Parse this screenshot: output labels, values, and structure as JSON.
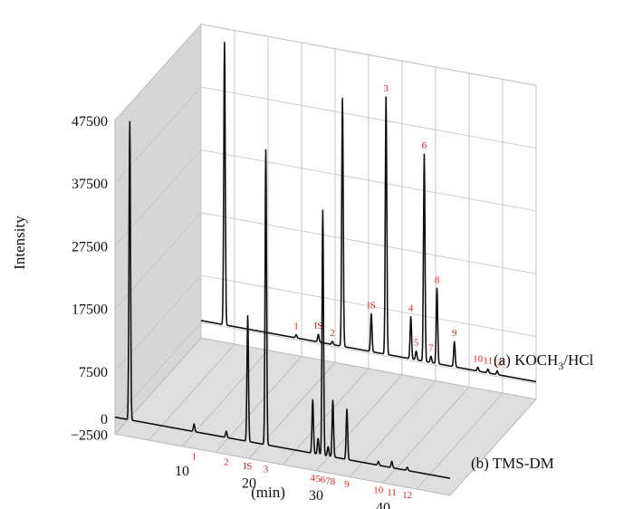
{
  "chart_data": {
    "type": "line",
    "style": "3d-waterfall",
    "ylabel": "Intensity",
    "xlabel": "(min)",
    "yticks": [
      "47500",
      "37500",
      "27500",
      "17500",
      "7500",
      "0",
      "−2500"
    ],
    "ytick_values": [
      47500,
      37500,
      27500,
      17500,
      7500,
      0,
      -2500
    ],
    "xticks": [
      "10",
      "20",
      "30",
      "40"
    ],
    "xtick_values": [
      10,
      20,
      30,
      40
    ],
    "xlim": [
      0,
      50
    ],
    "ylim": [
      -2500,
      47500
    ],
    "grid": true,
    "label_color": "#e8231f",
    "line_color": "#111111",
    "series": [
      {
        "name": "(a) KOCH",
        "name_sub": "3",
        "name_tail": "/HCl",
        "depth": 1,
        "baseline": 300,
        "peaks": [
          {
            "x": 3.5,
            "y": 45000,
            "label": ""
          },
          {
            "x": 14.2,
            "y": 500,
            "label": "1"
          },
          {
            "x": 17.5,
            "y": 1200,
            "label": "IS"
          },
          {
            "x": 19.6,
            "y": 500,
            "label": "2"
          },
          {
            "x": 21.1,
            "y": 39500,
            "label": ""
          },
          {
            "x": 25.4,
            "y": 6000,
            "label": "IS"
          },
          {
            "x": 27.6,
            "y": 41000,
            "label": "3"
          },
          {
            "x": 31.3,
            "y": 6700,
            "label": "4"
          },
          {
            "x": 32.1,
            "y": 1400,
            "label": "5"
          },
          {
            "x": 33.3,
            "y": 33000,
            "label": "6"
          },
          {
            "x": 34.3,
            "y": 1000,
            "label": "7"
          },
          {
            "x": 35.2,
            "y": 12000,
            "label": "8"
          },
          {
            "x": 37.8,
            "y": 4000,
            "label": "9"
          },
          {
            "x": 41.3,
            "y": 600,
            "label": "10"
          },
          {
            "x": 42.8,
            "y": 600,
            "label": "11"
          },
          {
            "x": 44.2,
            "y": 600,
            "label": "12"
          }
        ]
      },
      {
        "name": "(b) TMS-DM",
        "depth": 0,
        "baseline": 200,
        "peaks": [
          {
            "x": 2.2,
            "y": 47500,
            "label": ""
          },
          {
            "x": 11.8,
            "y": 1200,
            "label": "1"
          },
          {
            "x": 16.6,
            "y": 1000,
            "label": "2"
          },
          {
            "x": 19.8,
            "y": 20000,
            "label": "IS"
          },
          {
            "x": 22.5,
            "y": 47000,
            "label": "3"
          },
          {
            "x": 29.5,
            "y": 8500,
            "label": "4"
          },
          {
            "x": 30.3,
            "y": 2500,
            "label": "5"
          },
          {
            "x": 31.0,
            "y": 39000,
            "label": "6"
          },
          {
            "x": 31.8,
            "y": 1500,
            "label": "7"
          },
          {
            "x": 32.5,
            "y": 9000,
            "label": "8"
          },
          {
            "x": 34.6,
            "y": 8000,
            "label": "9"
          },
          {
            "x": 39.3,
            "y": 600,
            "label": "10"
          },
          {
            "x": 41.3,
            "y": 1000,
            "label": "11"
          },
          {
            "x": 43.6,
            "y": 500,
            "label": "12"
          }
        ]
      }
    ]
  }
}
